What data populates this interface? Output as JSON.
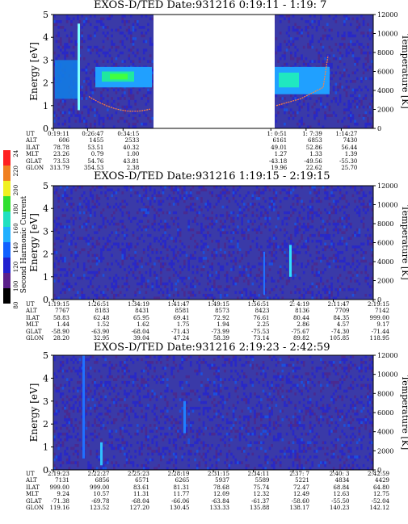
{
  "chart_data": [
    {
      "type": "heatmap",
      "title": "EXOS-D/TED   Date:931216   0:19:11 - 1:19: 7",
      "ylabel": "Energy [eV]",
      "y2label": "Temperature [K]",
      "ylim": [
        0,
        5
      ],
      "y2lim": [
        0,
        12000
      ],
      "yticks": [
        "0",
        "1",
        "2",
        "3",
        "4",
        "5"
      ],
      "y2ticks": [
        "0",
        "2000",
        "4000",
        "6000",
        "8000",
        "10000",
        "12000"
      ],
      "features": "data gap between 0:34:15 and 0:51",
      "orbit_labels": [
        "UT",
        "ALT",
        "ILAT",
        "MLT",
        "GLAT",
        "GLON"
      ],
      "orbit_columns": [
        [
          "0:19:11",
          "606",
          "78.78",
          "23.26",
          "73.53",
          "313.79"
        ],
        [
          "0:26:47",
          "1455",
          "53.51",
          "0.79",
          "54.76",
          "354.53"
        ],
        [
          "0:34:15",
          "2533",
          "40.32",
          "1.00",
          "43.81",
          "2.38"
        ],
        [
          "1: 0:51",
          "6161",
          "49.01",
          "1.27",
          "-43.18",
          "19.96"
        ],
        [
          "1: 7:39",
          "6853",
          "52.86",
          "1.33",
          "-49.56",
          "22.62"
        ],
        [
          "1:14:27",
          "7430",
          "56.44",
          "1.39",
          "-55.30",
          "25.70"
        ]
      ]
    },
    {
      "type": "heatmap",
      "title": "EXOS-D/TED   Date:931216   1:19:15 - 2:19:15",
      "ylabel": "Energy [eV]",
      "y2label": "Temperature [K]",
      "ylim": [
        0,
        5
      ],
      "y2lim": [
        0,
        12000
      ],
      "yticks": [
        "0",
        "1",
        "2",
        "3",
        "4",
        "5"
      ],
      "y2ticks": [
        "0",
        "2000",
        "4000",
        "6000",
        "8000",
        "10000",
        "12000"
      ],
      "orbit_labels": [
        "UT",
        "ALT",
        "ILAT",
        "MLT",
        "GLAT",
        "GLON"
      ],
      "orbit_columns": [
        [
          "1:19:15",
          "7767",
          "58.83",
          "1.44",
          "-58.90",
          "28.20"
        ],
        [
          "1:26:51",
          "8183",
          "62.48",
          "1.52",
          "-63.90",
          "32.95"
        ],
        [
          "1:34:19",
          "8431",
          "65.95",
          "1.62",
          "-68.04",
          "39.04"
        ],
        [
          "1:41:47",
          "8581",
          "69.41",
          "1.75",
          "-71.43",
          "47.24"
        ],
        [
          "1:49:15",
          "8573",
          "72.92",
          "1.94",
          "-73.99",
          "58.39"
        ],
        [
          "1:56:51",
          "8423",
          "76.61",
          "2.25",
          "-75.53",
          "73.14"
        ],
        [
          "2: 4:19",
          "8136",
          "80.44",
          "2.86",
          "-75.67",
          "89.82"
        ],
        [
          "2:11:47",
          "7709",
          "84.35",
          "4.57",
          "-74.30",
          "105.85"
        ],
        [
          "2:19:15",
          "7142",
          "999.00",
          "9.17",
          "-71.44",
          "118.95"
        ]
      ]
    },
    {
      "type": "heatmap",
      "title": "EXOS-D/TED   Date:931216   2:19:23 - 2:42:59",
      "ylabel": "Energy [eV]",
      "y2label": "Temperature [K]",
      "ylim": [
        0,
        5
      ],
      "y2lim": [
        0,
        12000
      ],
      "yticks": [
        "0",
        "1",
        "2",
        "3",
        "4",
        "5"
      ],
      "y2ticks": [
        "0",
        "2000",
        "4000",
        "6000",
        "8000",
        "10000",
        "12000"
      ],
      "orbit_labels": [
        "UT",
        "ALT",
        "ILAT",
        "MLT",
        "GLAT",
        "GLON"
      ],
      "orbit_columns": [
        [
          "2:19:23",
          "7131",
          "999.00",
          "9.24",
          "-71.38",
          "119.16"
        ],
        [
          "2:22:27",
          "6856",
          "999.00",
          "10.57",
          "-69.78",
          "123.52"
        ],
        [
          "2:25:23",
          "6571",
          "83.61",
          "11.31",
          "-68.04",
          "127.20"
        ],
        [
          "2:28:19",
          "6265",
          "81.31",
          "11.77",
          "-66.06",
          "130.45"
        ],
        [
          "2:31:15",
          "5937",
          "78.68",
          "12.09",
          "-63.84",
          "133.33"
        ],
        [
          "2:34:11",
          "5589",
          "75.74",
          "12.32",
          "-61.37",
          "135.88"
        ],
        [
          "2:37: 7",
          "5221",
          "72.47",
          "12.49",
          "-58.60",
          "138.17"
        ],
        [
          "2:40: 3",
          "4834",
          "68.84",
          "12.63",
          "-55.50",
          "140.23"
        ],
        [
          "2:42:59",
          "4429",
          "64.80",
          "12.75",
          "-52.04",
          "142.12"
        ]
      ]
    }
  ],
  "colorbar": {
    "label": "Second Harmonic Current",
    "ticks": [
      "240",
      "220",
      "200",
      "180",
      "160",
      "140",
      "120",
      "100",
      "80"
    ],
    "colors": [
      "#000000",
      "#5a1f8a",
      "#2020d0",
      "#1060ff",
      "#20b0ff",
      "#20e0c0",
      "#30e030",
      "#f0f020",
      "#f08020",
      "#ff2020"
    ]
  }
}
